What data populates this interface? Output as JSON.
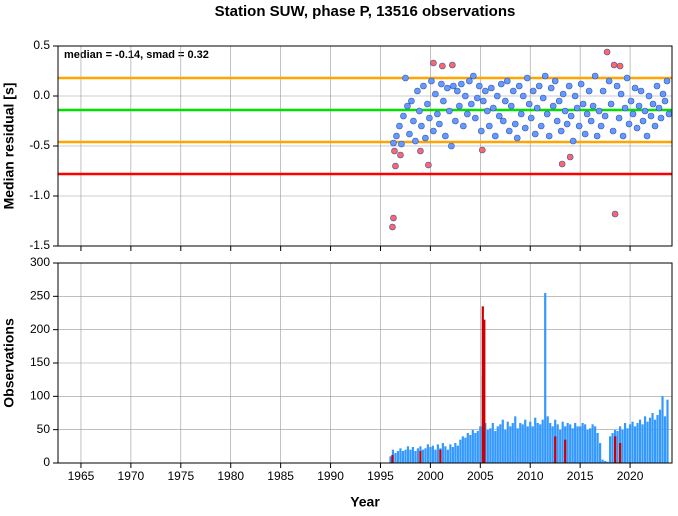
{
  "chart_data": [
    {
      "type": "scatter",
      "title": "Station SUW, phase P, 13516 observations",
      "ylabel": "Median residual [s]",
      "annotation": "median = -0.14, smad = 0.32",
      "xlim": [
        1962.7,
        2024.2
      ],
      "ylim": [
        -1.5,
        0.5
      ],
      "xticks": [
        1965,
        1970,
        1975,
        1980,
        1985,
        1990,
        1995,
        2000,
        2005,
        2010,
        2015,
        2020
      ],
      "yticks": [
        0.5,
        {
          "value": 0,
          "label": "0.0"
        },
        -0.5,
        {
          "value": -1,
          "label": "-1.0"
        },
        -1.5
      ],
      "grid": true,
      "hlines": [
        {
          "value": 0.18,
          "color": "#ffa500"
        },
        {
          "value": -0.46,
          "color": "#ffa500"
        },
        {
          "value": -0.14,
          "color": "#00e000"
        },
        {
          "value": -0.78,
          "color": "#ff0000"
        }
      ],
      "series": [
        {
          "color": "#6699ff",
          "x": [
            1996.3,
            1996.6,
            1996.9,
            1997.1,
            1997.3,
            1997.5,
            1997.7,
            1997.9,
            1998.1,
            1998.3,
            1998.5,
            1998.7,
            1998.9,
            1999.1,
            1999.3,
            1999.5,
            1999.7,
            1999.9,
            2000.1,
            2000.3,
            2000.5,
            2000.7,
            2000.9,
            2001.1,
            2001.3,
            2001.5,
            2001.7,
            2001.9,
            2002.1,
            2002.3,
            2002.5,
            2002.7,
            2002.9,
            2003.1,
            2003.3,
            2003.5,
            2003.7,
            2003.9,
            2004.1,
            2004.3,
            2004.5,
            2004.7,
            2004.9,
            2005.1,
            2005.3,
            2005.5,
            2005.7,
            2005.9,
            2006.1,
            2006.3,
            2006.5,
            2006.7,
            2006.9,
            2007.1,
            2007.3,
            2007.5,
            2007.7,
            2007.9,
            2008.1,
            2008.3,
            2008.5,
            2008.7,
            2008.9,
            2009.1,
            2009.3,
            2009.5,
            2009.7,
            2009.9,
            2010.1,
            2010.3,
            2010.5,
            2010.7,
            2010.9,
            2011.1,
            2011.3,
            2011.5,
            2011.7,
            2011.9,
            2012.1,
            2012.3,
            2012.5,
            2012.7,
            2012.9,
            2013.1,
            2013.3,
            2013.5,
            2013.7,
            2013.9,
            2014.1,
            2014.3,
            2014.5,
            2014.7,
            2014.9,
            2015.1,
            2015.3,
            2015.5,
            2015.7,
            2015.9,
            2016.1,
            2016.3,
            2016.5,
            2016.7,
            2016.9,
            2017.1,
            2017.3,
            2017.5,
            2017.9,
            2018.1,
            2018.3,
            2018.7,
            2018.9,
            2019.1,
            2019.3,
            2019.5,
            2019.7,
            2019.9,
            2020.1,
            2020.3,
            2020.5,
            2020.7,
            2020.9,
            2021.1,
            2021.3,
            2021.5,
            2021.7,
            2021.9,
            2022.1,
            2022.3,
            2022.5,
            2022.7,
            2022.9,
            2023.1,
            2023.3,
            2023.5,
            2023.7,
            2023.9
          ],
          "values": [
            -0.47,
            -0.4,
            -0.3,
            -0.48,
            -0.2,
            0.18,
            -0.1,
            -0.38,
            -0.05,
            -0.25,
            -0.45,
            0.05,
            -0.15,
            -0.3,
            0.1,
            -0.42,
            -0.08,
            -0.22,
            0.15,
            -0.35,
            0.02,
            -0.18,
            -0.28,
            0.12,
            -0.05,
            -0.4,
            0.08,
            -0.15,
            -0.5,
            0.1,
            -0.25,
            0.05,
            -0.1,
            0.12,
            -0.3,
            0.0,
            -0.18,
            0.15,
            -0.08,
            0.2,
            -0.22,
            -0.02,
            0.1,
            -0.35,
            -0.05,
            0.05,
            -0.15,
            -0.3,
            0.08,
            -0.12,
            -0.4,
            0.0,
            -0.2,
            0.12,
            -0.25,
            -0.05,
            0.15,
            -0.35,
            -0.1,
            0.05,
            -0.28,
            -0.42,
            0.1,
            -0.18,
            0.0,
            -0.32,
            0.18,
            -0.08,
            -0.22,
            0.05,
            -0.38,
            -0.12,
            0.1,
            -0.3,
            -0.02,
            0.2,
            -0.18,
            -0.4,
            0.08,
            -0.1,
            0.15,
            -0.25,
            -0.05,
            -0.35,
            0.02,
            -0.15,
            -0.28,
            0.1,
            -0.2,
            -0.45,
            0.0,
            -0.12,
            -0.3,
            0.12,
            -0.08,
            -0.38,
            -0.18,
            0.05,
            -0.25,
            -0.1,
            0.2,
            -0.4,
            -0.15,
            -0.3,
            0.05,
            -0.2,
            0.15,
            -0.08,
            -0.35,
            0.1,
            -0.22,
            0.02,
            -0.4,
            -0.12,
            0.18,
            -0.28,
            -0.05,
            -0.18,
            0.08,
            -0.32,
            -0.1,
            0.05,
            -0.25,
            -0.15,
            -0.4,
            0.0,
            -0.2,
            -0.08,
            -0.3,
            0.1,
            -0.12,
            -0.22,
            0.02,
            -0.05,
            0.15,
            -0.18
          ]
        },
        {
          "color": "#ff6666",
          "x": [
            1996.2,
            1996.3,
            1996.4,
            1996.5,
            1997.0,
            1999.0,
            1999.8,
            2000.3,
            2001.2,
            2002.2,
            2005.2,
            2013.2,
            2014.0,
            2017.7,
            2018.4,
            2018.5,
            2019.0
          ],
          "values": [
            -1.31,
            -1.22,
            -0.55,
            -0.7,
            -0.59,
            -0.55,
            -0.69,
            0.33,
            0.3,
            0.31,
            -0.54,
            -0.68,
            -0.61,
            0.44,
            0.31,
            -1.18,
            0.3
          ]
        }
      ]
    },
    {
      "type": "bar",
      "ylabel": "Observations",
      "xlabel": "Year",
      "xlim": [
        1962.7,
        2024.2
      ],
      "ylim": [
        0,
        300
      ],
      "xticks": [
        1965,
        1970,
        1975,
        1980,
        1985,
        1990,
        1995,
        2000,
        2005,
        2010,
        2015,
        2020
      ],
      "yticks": [
        0,
        50,
        100,
        150,
        200,
        250,
        300
      ],
      "grid": true,
      "series": [
        {
          "color": "#3399ff",
          "x": [
            1996,
            1996.25,
            1996.5,
            1996.75,
            1997,
            1997.25,
            1997.5,
            1997.75,
            1998,
            1998.25,
            1998.5,
            1998.75,
            1999,
            1999.25,
            1999.5,
            1999.75,
            2000,
            2000.25,
            2000.5,
            2000.75,
            2001,
            2001.25,
            2001.5,
            2001.75,
            2002,
            2002.25,
            2002.5,
            2002.75,
            2003,
            2003.25,
            2003.5,
            2003.75,
            2004,
            2004.25,
            2004.5,
            2004.75,
            2005,
            2005.25,
            2005.5,
            2005.75,
            2006,
            2006.25,
            2006.5,
            2006.75,
            2007,
            2007.25,
            2007.5,
            2007.75,
            2008,
            2008.25,
            2008.5,
            2008.75,
            2009,
            2009.25,
            2009.5,
            2009.75,
            2010,
            2010.25,
            2010.5,
            2010.75,
            2011,
            2011.25,
            2011.5,
            2011.75,
            2012,
            2012.25,
            2012.5,
            2012.75,
            2013,
            2013.25,
            2013.5,
            2013.75,
            2014,
            2014.25,
            2014.5,
            2014.75,
            2015,
            2015.25,
            2015.5,
            2015.75,
            2016,
            2016.25,
            2016.5,
            2016.75,
            2017,
            2017.25,
            2017.5,
            2017.75,
            2018,
            2018.25,
            2018.5,
            2018.75,
            2019,
            2019.25,
            2019.5,
            2019.75,
            2020,
            2020.25,
            2020.5,
            2020.75,
            2021,
            2021.25,
            2021.5,
            2021.75,
            2022,
            2022.25,
            2022.5,
            2022.75,
            2023,
            2023.25,
            2023.5,
            2023.75
          ],
          "values": [
            10,
            20,
            15,
            18,
            22,
            18,
            20,
            25,
            20,
            24,
            18,
            22,
            25,
            20,
            22,
            28,
            24,
            26,
            20,
            28,
            22,
            30,
            25,
            20,
            28,
            24,
            30,
            26,
            35,
            40,
            38,
            45,
            42,
            50,
            45,
            48,
            55,
            130,
            60,
            50,
            52,
            60,
            48,
            55,
            58,
            65,
            50,
            62,
            55,
            60,
            70,
            52,
            60,
            58,
            65,
            55,
            62,
            55,
            68,
            60,
            58,
            65,
            255,
            70,
            60,
            55,
            65,
            58,
            50,
            62,
            55,
            60,
            58,
            52,
            60,
            55,
            55,
            60,
            58,
            50,
            52,
            58,
            55,
            45,
            30,
            5,
            3,
            2,
            40,
            45,
            50,
            48,
            55,
            50,
            60,
            52,
            58,
            62,
            55,
            60,
            65,
            58,
            70,
            62,
            68,
            75,
            65,
            72,
            80,
            100,
            70,
            95
          ]
        },
        {
          "color": "#cc0000",
          "x": [
            1996.2,
            1999.0,
            2001.0,
            2005.25,
            2005.4,
            2012.5,
            2013.5,
            2018.5,
            2019.0
          ],
          "values": [
            12,
            18,
            20,
            235,
            215,
            40,
            35,
            40,
            30
          ]
        }
      ]
    }
  ]
}
